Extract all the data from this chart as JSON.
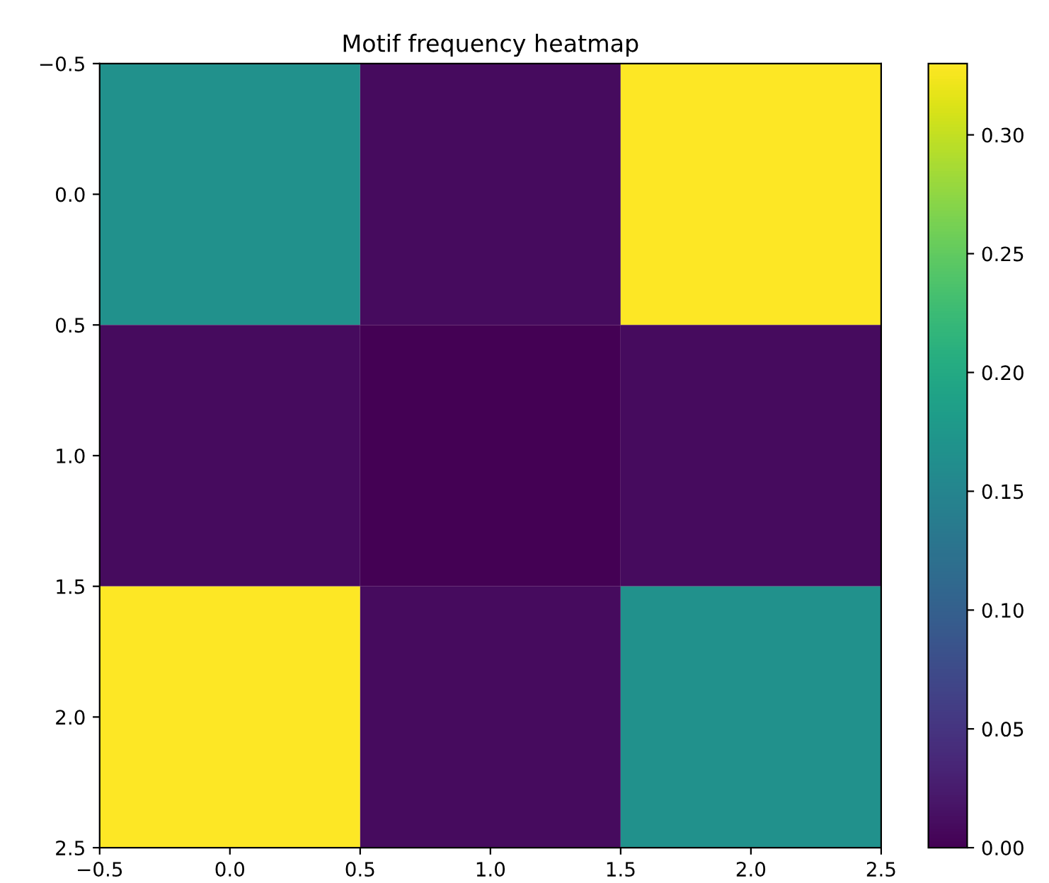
{
  "chart_data": {
    "type": "heatmap",
    "title": "Motif frequency heatmap",
    "cells": [
      [
        0.165,
        0.01,
        0.33
      ],
      [
        0.01,
        0.0,
        0.01
      ],
      [
        0.33,
        0.01,
        0.165
      ]
    ],
    "xlim": [
      -0.5,
      2.5
    ],
    "xticks": [
      {
        "value": -0.5,
        "label": "−0.5"
      },
      {
        "value": 0,
        "label": "0.0"
      },
      0.5,
      {
        "value": 1,
        "label": "1.0"
      },
      1.5,
      {
        "value": 2,
        "label": "2.0"
      },
      2.5
    ],
    "ylim": [
      2.5,
      -0.5
    ],
    "yticks": [
      {
        "value": -0.5,
        "label": "−0.5"
      },
      {
        "value": 0,
        "label": "0.0"
      },
      0.5,
      {
        "value": 1,
        "label": "1.0"
      },
      1.5,
      {
        "value": 2,
        "label": "2.0"
      },
      2.5
    ],
    "clim": [
      0.0,
      0.33
    ],
    "cticks": [
      {
        "value": 0,
        "label": "0.00"
      },
      {
        "value": 0.05,
        "label": "0.05"
      },
      {
        "value": 0.1,
        "label": "0.10"
      },
      {
        "value": 0.15,
        "label": "0.15"
      },
      {
        "value": 0.2,
        "label": "0.20"
      },
      {
        "value": 0.25,
        "label": "0.25"
      },
      {
        "value": 0.3,
        "label": "0.30"
      }
    ]
  }
}
